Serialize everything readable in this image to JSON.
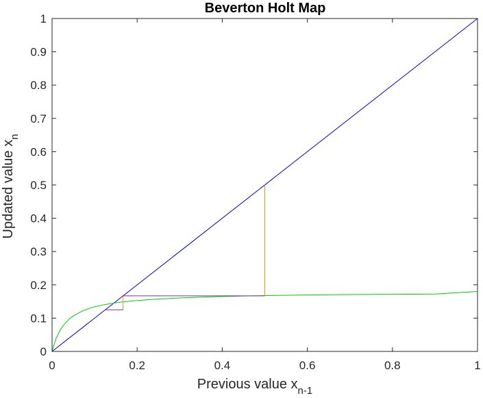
{
  "chart_data": {
    "type": "line",
    "title": "Beverton Holt Map",
    "xlabel": {
      "text": "Previous value x",
      "subscript": "n-1"
    },
    "ylabel": {
      "text": "Updated value x",
      "subscript": "n"
    },
    "xlim": [
      0,
      1
    ],
    "ylim": [
      0,
      1
    ],
    "xticks": [
      0,
      0.2,
      0.4,
      0.6,
      0.8,
      1
    ],
    "xtick_labels": [
      "0",
      "0.2",
      "0.4",
      "0.6",
      "0.8",
      "1"
    ],
    "yticks": [
      0,
      0.1,
      0.2,
      0.3,
      0.4,
      0.5,
      0.6,
      0.7,
      0.8,
      0.9,
      1
    ],
    "ytick_labels": [
      "0",
      "0.1",
      "0.2",
      "0.3",
      "0.4",
      "0.5",
      "0.6",
      "0.7",
      "0.8",
      "0.9",
      "1"
    ],
    "grid": false,
    "series": [
      {
        "kind": "identity",
        "color": "#0000cc",
        "x": [
          0,
          1
        ],
        "y": [
          0,
          1
        ]
      },
      {
        "kind": "map-curve",
        "color": "#00cc00",
        "x": [
          0,
          0.005,
          0.01,
          0.02,
          0.03,
          0.04,
          0.05,
          0.07,
          0.09,
          0.1,
          0.12,
          0.15,
          0.17,
          0.2,
          0.25,
          0.3,
          0.35,
          0.4,
          0.45,
          0.5,
          0.6,
          0.7,
          0.8,
          0.9,
          1.0
        ],
        "y": [
          0,
          0.0091,
          0.0167,
          0.0286,
          0.0375,
          0.0444,
          0.05,
          0.0583,
          0.0643,
          0.0667,
          0.0706,
          0.075,
          0.0773,
          0.08,
          0.0833,
          0.0857,
          0.0875,
          0.0889,
          0.09,
          0.0909,
          0.0923,
          0.0933,
          0.0941,
          0.0947,
          0.0952
        ],
        "y_scaled": [
          0,
          0.0222,
          0.0404,
          0.0661,
          0.0838,
          0.0967,
          0.1066,
          0.1208,
          0.1305,
          0.1341,
          0.1398,
          0.1462,
          0.1493,
          0.1529,
          0.1574,
          0.1606,
          0.163,
          0.1649,
          0.1664,
          0.1676,
          0.1694,
          0.1707,
          0.1716,
          0.1724,
          0.18
        ]
      },
      {
        "kind": "cobweb-vertical",
        "color": "#e69500",
        "segments": [
          {
            "x": [
              0.5,
              0.5
            ],
            "y": [
              0.5,
              0.167
            ]
          },
          {
            "x": [
              0.167,
              0.167
            ],
            "y": [
              0.167,
              0.125
            ]
          }
        ]
      },
      {
        "kind": "cobweb-horizontal",
        "color": "#7b2fa8",
        "segments": [
          {
            "x": [
              0.5,
              0.167
            ],
            "y": [
              0.167,
              0.167
            ]
          },
          {
            "x": [
              0.167,
              0.125
            ],
            "y": [
              0.125,
              0.125
            ]
          }
        ]
      }
    ]
  }
}
